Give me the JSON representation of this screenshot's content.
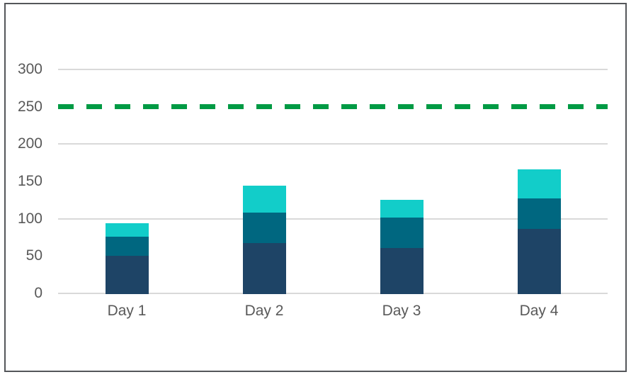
{
  "figure": {
    "background": "#ffffff",
    "border_color": "#54565a"
  },
  "chart_data": {
    "type": "bar",
    "stacked": true,
    "categories": [
      "Day 1",
      "Day 2",
      "Day 3",
      "Day 4"
    ],
    "series": [
      {
        "name": "bottom-navy-segment",
        "color": "#1e4466",
        "values": [
          50,
          67,
          61,
          86
        ]
      },
      {
        "name": "middle-teal-segment",
        "color": "#006780",
        "values": [
          26,
          41,
          41,
          41
        ]
      },
      {
        "name": "top-cyan-segment",
        "color": "#12cdc9",
        "values": [
          18,
          36,
          23,
          39
        ]
      }
    ],
    "stack_totals": [
      94,
      144,
      125,
      166
    ],
    "reference_line": {
      "value": 250,
      "color": "#009a44",
      "style": "dashed"
    },
    "y_axis": {
      "min": 0,
      "max": 300,
      "label_step": 50,
      "tick_labels": [
        "0",
        "50",
        "100",
        "150",
        "200",
        "250",
        "300"
      ],
      "gridline_step": 100,
      "gridline_color": "#d9d9d9"
    },
    "x_axis": {
      "labels": [
        "Day 1",
        "Day 2",
        "Day 3",
        "Day 4"
      ]
    },
    "text_color": "#595959",
    "grid": true,
    "legend": "none"
  }
}
